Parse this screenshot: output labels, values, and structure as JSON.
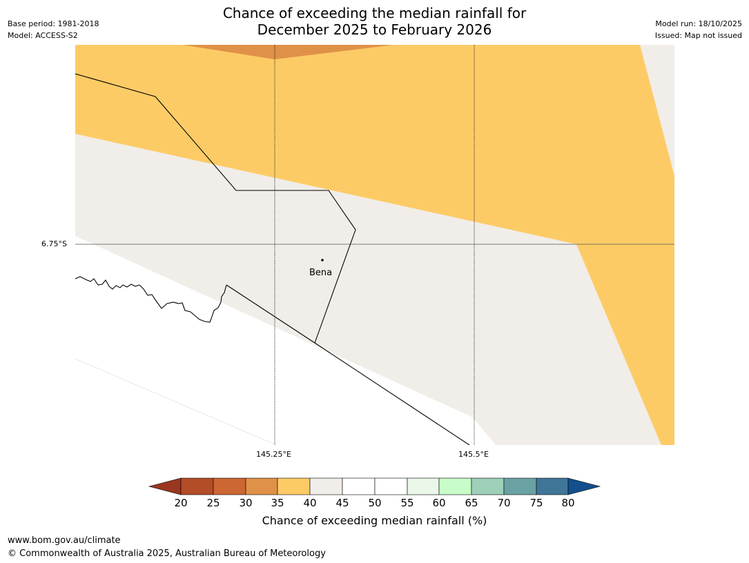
{
  "title": {
    "line1": "Chance of exceeding the median rainfall for",
    "line2": "December 2025 to February 2026"
  },
  "meta_left": {
    "base_period": "Base period: 1981-2018",
    "model": "Model: ACCESS-S2"
  },
  "meta_right": {
    "model_run": "Model run: 18/10/2025",
    "issued": "Issued: Map not issued"
  },
  "map": {
    "latitude_label": "6.75°S",
    "longitude_labels": [
      "145.25°E",
      "145.5°E"
    ],
    "place": {
      "name": "Bena",
      "marker": "town-dot-icon"
    },
    "colors": {
      "band_35_40": "#fdcb66",
      "band_30_35": "#e09148",
      "band_40_45": "#f1ede8",
      "band_45_55": "#ffffff",
      "gridline": "#555555",
      "boundary": "#000000"
    }
  },
  "colorbar": {
    "label": "Chance of exceeding median rainfall (%)",
    "ticks": [
      "20",
      "25",
      "30",
      "35",
      "40",
      "45",
      "50",
      "55",
      "60",
      "65",
      "70",
      "75",
      "80"
    ],
    "low_extend_color": "#993720",
    "high_extend_color": "#134f8c",
    "segments": [
      {
        "range": "20-25",
        "color": "#b34d27"
      },
      {
        "range": "25-30",
        "color": "#cc6633"
      },
      {
        "range": "30-35",
        "color": "#e09148"
      },
      {
        "range": "35-40",
        "color": "#fdcb66"
      },
      {
        "range": "40-45",
        "color": "#f1ede8"
      },
      {
        "range": "45-50",
        "color": "#ffffff"
      },
      {
        "range": "50-55",
        "color": "#ffffff"
      },
      {
        "range": "55-60",
        "color": "#ebf7e9"
      },
      {
        "range": "60-65",
        "color": "#c8fcc8"
      },
      {
        "range": "65-70",
        "color": "#9ecfb9"
      },
      {
        "range": "70-75",
        "color": "#6aa2a4"
      },
      {
        "range": "75-80",
        "color": "#3f7698"
      }
    ]
  },
  "footer": {
    "website": "www.bom.gov.au/climate",
    "copyright": "© Commonwealth of Australia 2025, Australian Bureau of Meteorology"
  }
}
